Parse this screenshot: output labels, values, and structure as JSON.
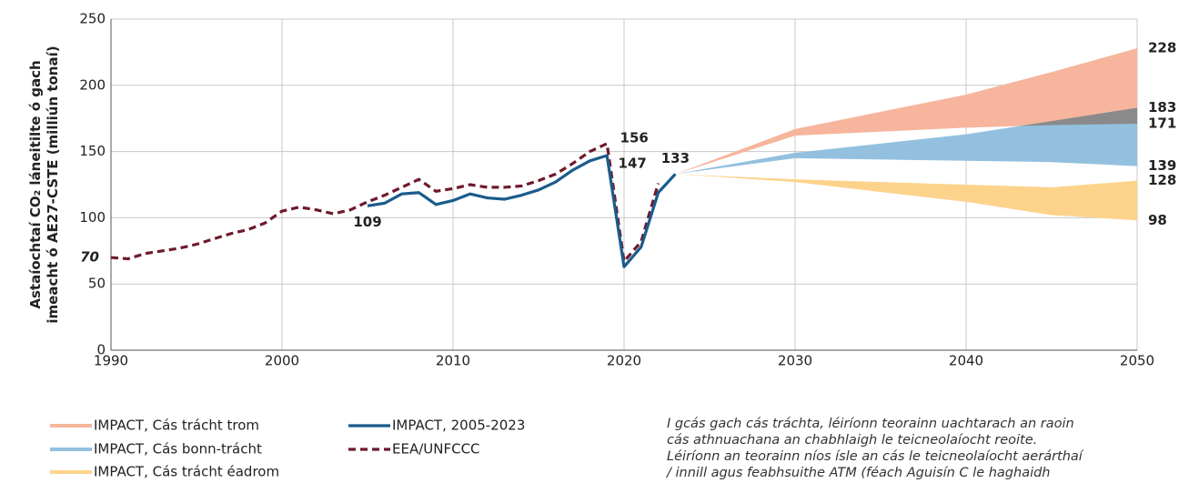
{
  "chart_data": {
    "type": "line",
    "y_label": [
      "Astaíochtaí CO₂ láneitilte ó gach",
      "imeacht ó AE27-CSTE (milliún tonaí)"
    ],
    "xlim": [
      1990,
      2050
    ],
    "xticks": [
      1990,
      2000,
      2010,
      2020,
      2030,
      2040,
      2050
    ],
    "ylim": [
      0,
      250
    ],
    "yticks": [
      0,
      50,
      100,
      150,
      200,
      250
    ],
    "grid": true,
    "overlap_color": "#8a8a8a",
    "bands": [
      {
        "name": "IMPACT, Cás trácht trom",
        "color": "#f6b59c",
        "label_color": "#f0967a",
        "x": [
          2023,
          2030,
          2040,
          2045,
          2050
        ],
        "upper": [
          133,
          167,
          193,
          210,
          228
        ],
        "lower": [
          133,
          162,
          168,
          170,
          171
        ]
      },
      {
        "name": "IMPACT, Cás bonn-trácht",
        "color": "#93c0de",
        "label_color": "#2a8fcc",
        "x": [
          2023,
          2030,
          2040,
          2045,
          2050
        ],
        "upper": [
          133,
          149,
          163,
          173,
          183
        ],
        "lower": [
          133,
          145,
          143,
          142,
          139
        ]
      },
      {
        "name": "IMPACT, Cás trácht éadrom",
        "color": "#fdd38c",
        "label_color": "#c9a05c",
        "x": [
          2023,
          2030,
          2040,
          2045,
          2050
        ],
        "upper": [
          133,
          129,
          125,
          123,
          128
        ],
        "lower": [
          133,
          127,
          112,
          102,
          98
        ]
      }
    ],
    "series": [
      {
        "name": "IMPACT, 2005-2023",
        "color": "#1a5c8c",
        "dashed": false,
        "x": [
          2005,
          2006,
          2007,
          2008,
          2009,
          2010,
          2011,
          2012,
          2013,
          2014,
          2015,
          2016,
          2017,
          2018,
          2019,
          2020,
          2021,
          2022,
          2023
        ],
        "values": [
          109,
          111,
          118,
          119,
          110,
          113,
          118,
          115,
          114,
          117,
          121,
          127,
          136,
          143,
          147,
          63,
          78,
          119,
          133
        ]
      },
      {
        "name": "EEA/UNFCCC",
        "color": "#6e1a2c",
        "dashed": true,
        "x": [
          1990,
          1991,
          1992,
          1993,
          1994,
          1995,
          1996,
          1997,
          1998,
          1999,
          2000,
          2001,
          2002,
          2003,
          2004,
          2005,
          2006,
          2007,
          2008,
          2009,
          2010,
          2011,
          2012,
          2013,
          2014,
          2015,
          2016,
          2017,
          2018,
          2019,
          2020,
          2021,
          2022
        ],
        "values": [
          70,
          69,
          73,
          75,
          77,
          80,
          84,
          88,
          91,
          96,
          105,
          108,
          106,
          103,
          106,
          112,
          117,
          123,
          129,
          120,
          122,
          125,
          123,
          123,
          124,
          128,
          133,
          141,
          150,
          156,
          67,
          82,
          126
        ]
      }
    ],
    "note": [
      "I gcás gach cás tráchta, léiríonn teorainn uachtarach an raoin",
      "cás athnuachana an chabhlaigh le teicneolaíocht reoite.",
      "Léiríonn an teorainn níos ísle an cás le teicneolaíocht aerárthaí",
      "/ innill agus feabhsuithe ATM (féach Aguisín C le haghaidh"
    ]
  }
}
